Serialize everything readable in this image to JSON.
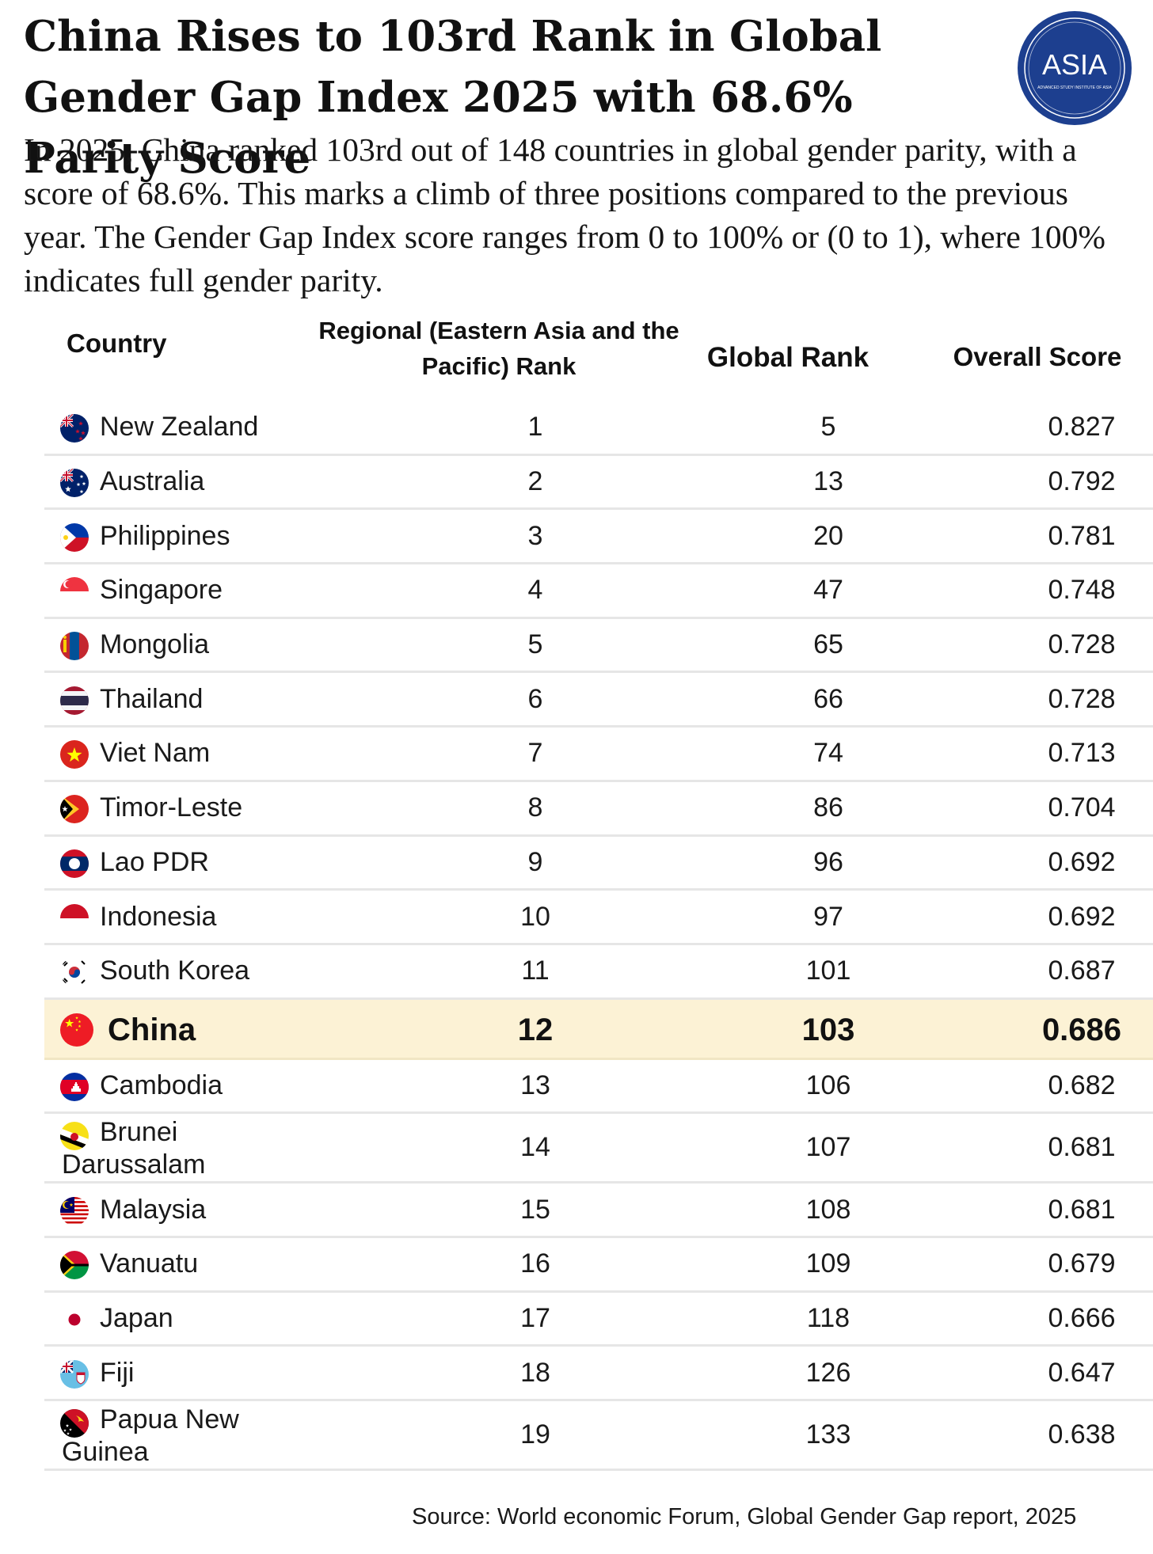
{
  "title": "China Rises to 103rd Rank in Global Gender Gap Index 2025 with 68.6% Parity Score",
  "subtitle": "In 2025, China ranked 103rd out of 148 countries in global gender parity, with a score of 68.6%. This marks a climb of three positions compared to the previous year. The Gender Gap Index score ranges from 0 to 100% or (0 to 1), where 100% indicates full gender parity.",
  "logo": {
    "text": "ASIA",
    "subtext": "ADVANCED STUDY INSTITUTE OF ASIA",
    "color": "#1d3f8f"
  },
  "highlight_color": "#fcf2d5",
  "source": "Source: World economic Forum, Global Gender Gap report, 2025",
  "chart_data": {
    "type": "table",
    "columns": [
      "Country",
      "Regional (Eastern Asia and the Pacific) Rank",
      "Global Rank",
      "Overall Score"
    ],
    "highlighted_country": "China",
    "rows": [
      {
        "country": "New Zealand",
        "regional_rank": "1",
        "global_rank": "5",
        "score": "0.827",
        "flag": "new-zealand-flag-icon"
      },
      {
        "country": "Australia",
        "regional_rank": "2",
        "global_rank": "13",
        "score": "0.792",
        "flag": "australia-flag-icon"
      },
      {
        "country": "Philippines",
        "regional_rank": "3",
        "global_rank": "20",
        "score": "0.781",
        "flag": "philippines-flag-icon"
      },
      {
        "country": "Singapore",
        "regional_rank": "4",
        "global_rank": "47",
        "score": "0.748",
        "flag": "singapore-flag-icon"
      },
      {
        "country": "Mongolia",
        "regional_rank": "5",
        "global_rank": "65",
        "score": "0.728",
        "flag": "mongolia-flag-icon"
      },
      {
        "country": "Thailand",
        "regional_rank": "6",
        "global_rank": "66",
        "score": "0.728",
        "flag": "thailand-flag-icon"
      },
      {
        "country": "Viet Nam",
        "regional_rank": "7",
        "global_rank": "74",
        "score": "0.713",
        "flag": "viet-nam-flag-icon"
      },
      {
        "country": "Timor-Leste",
        "regional_rank": "8",
        "global_rank": "86",
        "score": "0.704",
        "flag": "timor-leste-flag-icon"
      },
      {
        "country": "Lao PDR",
        "regional_rank": "9",
        "global_rank": "96",
        "score": "0.692",
        "flag": "lao-pdr-flag-icon"
      },
      {
        "country": "Indonesia",
        "regional_rank": "10",
        "global_rank": "97",
        "score": "0.692",
        "flag": "indonesia-flag-icon"
      },
      {
        "country": "South Korea",
        "regional_rank": "11",
        "global_rank": "101",
        "score": "0.687",
        "flag": "south-korea-flag-icon"
      },
      {
        "country": "China",
        "regional_rank": "12",
        "global_rank": "103",
        "score": "0.686",
        "flag": "china-flag-icon"
      },
      {
        "country": "Cambodia",
        "regional_rank": "13",
        "global_rank": "106",
        "score": "0.682",
        "flag": "cambodia-flag-icon"
      },
      {
        "country": "Brunei Darussalam",
        "regional_rank": "14",
        "global_rank": "107",
        "score": "0.681",
        "flag": "brunei-flag-icon"
      },
      {
        "country": "Malaysia",
        "regional_rank": "15",
        "global_rank": "108",
        "score": "0.681",
        "flag": "malaysia-flag-icon"
      },
      {
        "country": "Vanuatu",
        "regional_rank": "16",
        "global_rank": "109",
        "score": "0.679",
        "flag": "vanuatu-flag-icon"
      },
      {
        "country": "Japan",
        "regional_rank": "17",
        "global_rank": "118",
        "score": "0.666",
        "flag": "japan-flag-icon"
      },
      {
        "country": "Fiji",
        "regional_rank": "18",
        "global_rank": "126",
        "score": "0.647",
        "flag": "fiji-flag-icon"
      },
      {
        "country": "Papua New Guinea",
        "regional_rank": "19",
        "global_rank": "133",
        "score": "0.638",
        "flag": "papua-new-guinea-flag-icon"
      }
    ]
  }
}
